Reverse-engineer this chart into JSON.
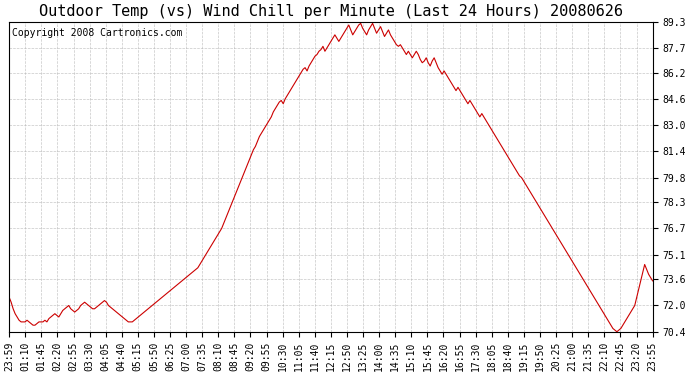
{
  "title": "Outdoor Temp (vs) Wind Chill per Minute (Last 24 Hours) 20080626",
  "copyright": "Copyright 2008 Cartronics.com",
  "line_color": "#cc0000",
  "background_color": "#ffffff",
  "grid_color": "#b0b0b0",
  "ylim": [
    70.4,
    89.3
  ],
  "yticks": [
    70.4,
    72.0,
    73.6,
    75.1,
    76.7,
    78.3,
    79.8,
    81.4,
    83.0,
    84.6,
    86.2,
    87.7,
    89.3
  ],
  "xtick_labels": [
    "23:59",
    "01:10",
    "01:45",
    "02:20",
    "02:55",
    "03:30",
    "04:05",
    "04:40",
    "05:15",
    "05:50",
    "06:25",
    "07:00",
    "07:35",
    "08:10",
    "08:45",
    "09:20",
    "09:55",
    "10:30",
    "11:05",
    "11:40",
    "12:15",
    "12:50",
    "13:25",
    "14:00",
    "14:35",
    "15:10",
    "15:45",
    "16:20",
    "16:55",
    "17:30",
    "18:05",
    "18:40",
    "19:15",
    "19:50",
    "20:25",
    "21:00",
    "21:35",
    "22:10",
    "22:45",
    "23:20",
    "23:55"
  ],
  "data_y": [
    72.5,
    72.2,
    71.8,
    71.5,
    71.3,
    71.1,
    71.0,
    71.0,
    71.0,
    71.1,
    71.0,
    70.9,
    70.8,
    70.8,
    70.9,
    71.0,
    71.0,
    71.0,
    71.1,
    71.0,
    71.2,
    71.3,
    71.4,
    71.5,
    71.4,
    71.3,
    71.5,
    71.7,
    71.8,
    71.9,
    72.0,
    71.8,
    71.7,
    71.6,
    71.7,
    71.8,
    72.0,
    72.1,
    72.2,
    72.1,
    72.0,
    71.9,
    71.8,
    71.8,
    71.9,
    72.0,
    72.1,
    72.2,
    72.3,
    72.2,
    72.0,
    71.9,
    71.8,
    71.7,
    71.6,
    71.5,
    71.4,
    71.3,
    71.2,
    71.1,
    71.0,
    71.0,
    71.0,
    71.1,
    71.2,
    71.3,
    71.4,
    71.5,
    71.6,
    71.7,
    71.8,
    71.9,
    72.0,
    72.1,
    72.2,
    72.3,
    72.4,
    72.5,
    72.6,
    72.7,
    72.8,
    72.9,
    73.0,
    73.1,
    73.2,
    73.3,
    73.4,
    73.5,
    73.6,
    73.7,
    73.8,
    73.9,
    74.0,
    74.1,
    74.2,
    74.3,
    74.5,
    74.7,
    74.9,
    75.1,
    75.3,
    75.5,
    75.7,
    75.9,
    76.1,
    76.3,
    76.5,
    76.7,
    77.0,
    77.3,
    77.6,
    77.9,
    78.2,
    78.5,
    78.8,
    79.1,
    79.4,
    79.7,
    80.0,
    80.3,
    80.6,
    80.9,
    81.2,
    81.5,
    81.7,
    82.0,
    82.3,
    82.5,
    82.7,
    82.9,
    83.1,
    83.3,
    83.5,
    83.8,
    84.0,
    84.2,
    84.4,
    84.5,
    84.3,
    84.6,
    84.8,
    85.0,
    85.2,
    85.4,
    85.6,
    85.8,
    86.0,
    86.2,
    86.4,
    86.5,
    86.3,
    86.6,
    86.8,
    87.0,
    87.2,
    87.3,
    87.5,
    87.6,
    87.8,
    87.5,
    87.7,
    87.9,
    88.1,
    88.3,
    88.5,
    88.3,
    88.1,
    88.3,
    88.5,
    88.7,
    88.9,
    89.1,
    88.8,
    88.5,
    88.7,
    88.9,
    89.1,
    89.2,
    88.9,
    88.7,
    88.5,
    88.8,
    89.0,
    89.2,
    88.9,
    88.6,
    88.8,
    89.0,
    88.7,
    88.4,
    88.6,
    88.8,
    88.5,
    88.3,
    88.1,
    87.9,
    87.8,
    87.9,
    87.7,
    87.5,
    87.3,
    87.5,
    87.3,
    87.1,
    87.3,
    87.5,
    87.3,
    87.0,
    86.8,
    86.9,
    87.1,
    86.8,
    86.6,
    86.9,
    87.1,
    86.8,
    86.5,
    86.3,
    86.1,
    86.3,
    86.1,
    85.9,
    85.7,
    85.5,
    85.3,
    85.1,
    85.3,
    85.1,
    84.9,
    84.7,
    84.5,
    84.3,
    84.5,
    84.3,
    84.1,
    83.9,
    83.7,
    83.5,
    83.7,
    83.5,
    83.3,
    83.1,
    82.9,
    82.7,
    82.5,
    82.3,
    82.1,
    81.9,
    81.7,
    81.5,
    81.3,
    81.1,
    80.9,
    80.7,
    80.5,
    80.3,
    80.1,
    79.9,
    79.8,
    79.6,
    79.4,
    79.2,
    79.0,
    78.8,
    78.6,
    78.4,
    78.2,
    78.0,
    77.8,
    77.6,
    77.4,
    77.2,
    77.0,
    76.8,
    76.6,
    76.4,
    76.2,
    76.0,
    75.8,
    75.6,
    75.4,
    75.2,
    75.0,
    74.8,
    74.6,
    74.4,
    74.2,
    74.0,
    73.8,
    73.6,
    73.4,
    73.2,
    73.0,
    72.8,
    72.6,
    72.4,
    72.2,
    72.0,
    71.8,
    71.6,
    71.4,
    71.2,
    71.0,
    70.8,
    70.6,
    70.5,
    70.4,
    70.5,
    70.6,
    70.8,
    71.0,
    71.2,
    71.4,
    71.6,
    71.8,
    72.0,
    72.5,
    73.0,
    73.5,
    74.0,
    74.5,
    74.2,
    73.9,
    73.7,
    73.5
  ],
  "title_fontsize": 11,
  "tick_fontsize": 7,
  "copyright_fontsize": 7,
  "line_width": 0.8
}
